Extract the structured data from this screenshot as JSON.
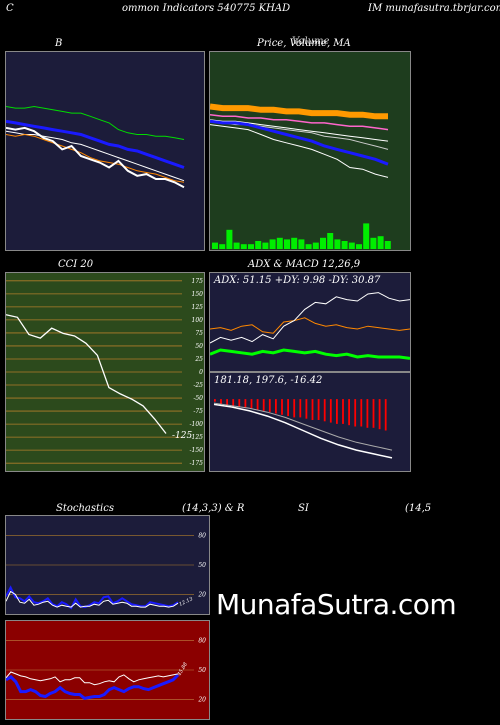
{
  "header": {
    "left": "C",
    "title": "ommon  Indicators 540775 KHAD",
    "right": "IM munafasutra.tbrjar.com"
  },
  "panels": {
    "bb": {
      "title": "B"
    },
    "price": {
      "title": "Price,  Volume,  MA",
      "overlay": "Volume"
    },
    "cci": {
      "title": "CCI 20",
      "value_label": "-125"
    },
    "adx": {
      "title": "ADX  & MACD 12,26,9",
      "readout": "ADX: 51.15 +DY: 9.98  -DY: 30.87"
    },
    "macd": {
      "readout": "181.18,  197.6,  -16.42"
    },
    "stoch": {
      "title": "Stochastics",
      "params": "(14,3,3) & R",
      "value_label": "12.13"
    },
    "rsi": {
      "title": "SI",
      "params": "(14,5",
      "value_label": "45.88"
    }
  },
  "watermark": "MunafaSutra.com",
  "colors": {
    "navy": "#1c1c3a",
    "green_bg": "#1e3d1e",
    "cci_bg": "#2c4a1c",
    "red_bg": "#8b0000",
    "blue": "#1a1aff",
    "orange": "#ff9900",
    "lime": "#00ff00"
  },
  "chart_data": [
    {
      "type": "line",
      "name": "bollinger",
      "series": [
        {
          "values": [
            118,
            117,
            116,
            115,
            114,
            113,
            112,
            111,
            110,
            108,
            106,
            104,
            103,
            101,
            100,
            98,
            96,
            94,
            92,
            90
          ]
        },
        {
          "values": [
            112,
            111,
            110,
            110,
            109,
            108,
            107,
            105,
            104,
            102,
            100,
            98,
            96,
            94,
            92,
            90,
            88,
            86,
            84,
            82
          ]
        },
        {
          "values": [
            127,
            126,
            126,
            127,
            126,
            125,
            124,
            123,
            123,
            121,
            119,
            117,
            113,
            111,
            110,
            110,
            109,
            109,
            108,
            107
          ]
        },
        {
          "values": [
            110,
            109,
            110,
            109,
            107,
            105,
            103,
            101,
            99,
            96,
            94,
            93,
            92,
            90,
            88,
            87,
            86,
            84,
            82,
            81
          ]
        },
        {
          "values": [
            114,
            113,
            114,
            112,
            108,
            106,
            101,
            103,
            97,
            95,
            93,
            90,
            94,
            88,
            85,
            86,
            83,
            83,
            81,
            78
          ]
        }
      ]
    },
    {
      "type": "line",
      "name": "price_ma",
      "series": [
        {
          "values": [
            127,
            126,
            126,
            126,
            125,
            125,
            124,
            124,
            123,
            123,
            123,
            122,
            122,
            121,
            121
          ]
        },
        {
          "values": [
            122,
            121,
            121,
            120,
            120,
            119,
            119,
            118,
            117,
            117,
            116,
            115,
            115,
            114,
            113
          ]
        },
        {
          "values": [
            119,
            118,
            118,
            117,
            116,
            115,
            114,
            113,
            112,
            111,
            110,
            109,
            108,
            107,
            106
          ]
        },
        {
          "values": [
            118,
            117,
            116,
            116,
            115,
            114,
            113,
            112,
            111,
            109,
            108,
            107,
            105,
            103,
            101
          ]
        },
        {
          "values": [
            118,
            117,
            117,
            116,
            114,
            112,
            110,
            108,
            106,
            103,
            101,
            99,
            97,
            95,
            92
          ]
        },
        {
          "values": [
            116,
            115,
            114,
            113,
            110,
            107,
            105,
            103,
            101,
            98,
            95,
            90,
            89,
            86,
            84
          ]
        }
      ],
      "volume": [
        4,
        3,
        12,
        4,
        3,
        3,
        5,
        4,
        6,
        7,
        6,
        7,
        6,
        3,
        4,
        7,
        10,
        6,
        5,
        4,
        3,
        16,
        7,
        8,
        5
      ]
    },
    {
      "type": "line",
      "name": "cci",
      "ylim": [
        -175,
        175
      ],
      "ticks": [
        175,
        150,
        125,
        100,
        75,
        50,
        25,
        0,
        -25,
        -50,
        -75,
        -100,
        -125,
        -150,
        -175
      ],
      "values": [
        110,
        105,
        72,
        65,
        84,
        74,
        69,
        55,
        32,
        -30,
        -42,
        -52,
        -65,
        -90,
        -118
      ]
    },
    {
      "type": "line",
      "name": "adx",
      "series": [
        {
          "values": [
            30,
            31,
            29,
            32,
            33,
            28,
            27,
            35,
            36,
            38,
            34,
            32,
            33,
            31,
            30,
            32,
            31,
            30,
            29,
            30
          ]
        },
        {
          "values": [
            12,
            15,
            14,
            13,
            12,
            14,
            13,
            15,
            14,
            13,
            14,
            12,
            11,
            12,
            10,
            11,
            10,
            10,
            10,
            9
          ]
        },
        {
          "values": [
            20,
            24,
            22,
            24,
            21,
            26,
            23,
            32,
            36,
            44,
            49,
            48,
            53,
            51,
            50,
            55,
            56,
            52,
            50,
            51
          ]
        }
      ]
    },
    {
      "type": "line",
      "name": "macd",
      "series": [
        {
          "values": [
            -4,
            -6,
            -9,
            -13,
            -18,
            -24,
            -30,
            -35,
            -39,
            -42,
            -45
          ]
        },
        {
          "values": [
            -3,
            -5,
            -7,
            -10,
            -14,
            -19,
            -24,
            -29,
            -33,
            -36,
            -39
          ]
        }
      ],
      "histogram": [
        -2,
        -4,
        -5,
        -6,
        -6,
        -7,
        -7,
        -8,
        -9,
        -10,
        -11,
        -12,
        -13,
        -14,
        -14,
        -15,
        -16,
        -16,
        -17,
        -18,
        -19,
        -19,
        -20,
        -21,
        -21,
        -22,
        -22,
        -23,
        -24
      ]
    },
    {
      "type": "line",
      "name": "stochastics",
      "ylim": [
        0,
        100
      ],
      "ticks": [
        80,
        50,
        20
      ],
      "series": [
        {
          "values": [
            18,
            27,
            17,
            16,
            13,
            18,
            12,
            11,
            13,
            16,
            10,
            8,
            12,
            10,
            6,
            15,
            8,
            7,
            9,
            12,
            11,
            17,
            18,
            11,
            13,
            16,
            13,
            10,
            9,
            8,
            8,
            12,
            11,
            10,
            9,
            8,
            9,
            12
          ]
        },
        {
          "values": [
            13,
            23,
            20,
            12,
            11,
            15,
            9,
            10,
            12,
            13,
            9,
            7,
            9,
            8,
            7,
            11,
            7,
            8,
            8,
            10,
            9,
            13,
            14,
            10,
            11,
            12,
            11,
            8,
            8,
            7,
            7,
            10,
            9,
            8,
            8,
            7,
            8,
            11
          ]
        }
      ]
    },
    {
      "type": "line",
      "name": "rsi",
      "ylim": [
        0,
        100
      ],
      "ticks": [
        80,
        50,
        20
      ],
      "series": [
        {
          "values": [
            42,
            48,
            46,
            44,
            43,
            41,
            40,
            39,
            40,
            41,
            43,
            38,
            40,
            40,
            42,
            42,
            37,
            37,
            35,
            36,
            38,
            39,
            38,
            43,
            45,
            41,
            38,
            40,
            41,
            42,
            43,
            44,
            43,
            44,
            45,
            46
          ]
        },
        {
          "values": [
            40,
            43,
            38,
            28,
            28,
            30,
            28,
            24,
            23,
            26,
            28,
            32,
            28,
            26,
            25,
            25,
            21,
            22,
            23,
            23,
            25,
            30,
            32,
            30,
            28,
            31,
            33,
            33,
            31,
            30,
            32,
            34,
            36,
            38,
            40,
            45
          ]
        }
      ]
    }
  ]
}
